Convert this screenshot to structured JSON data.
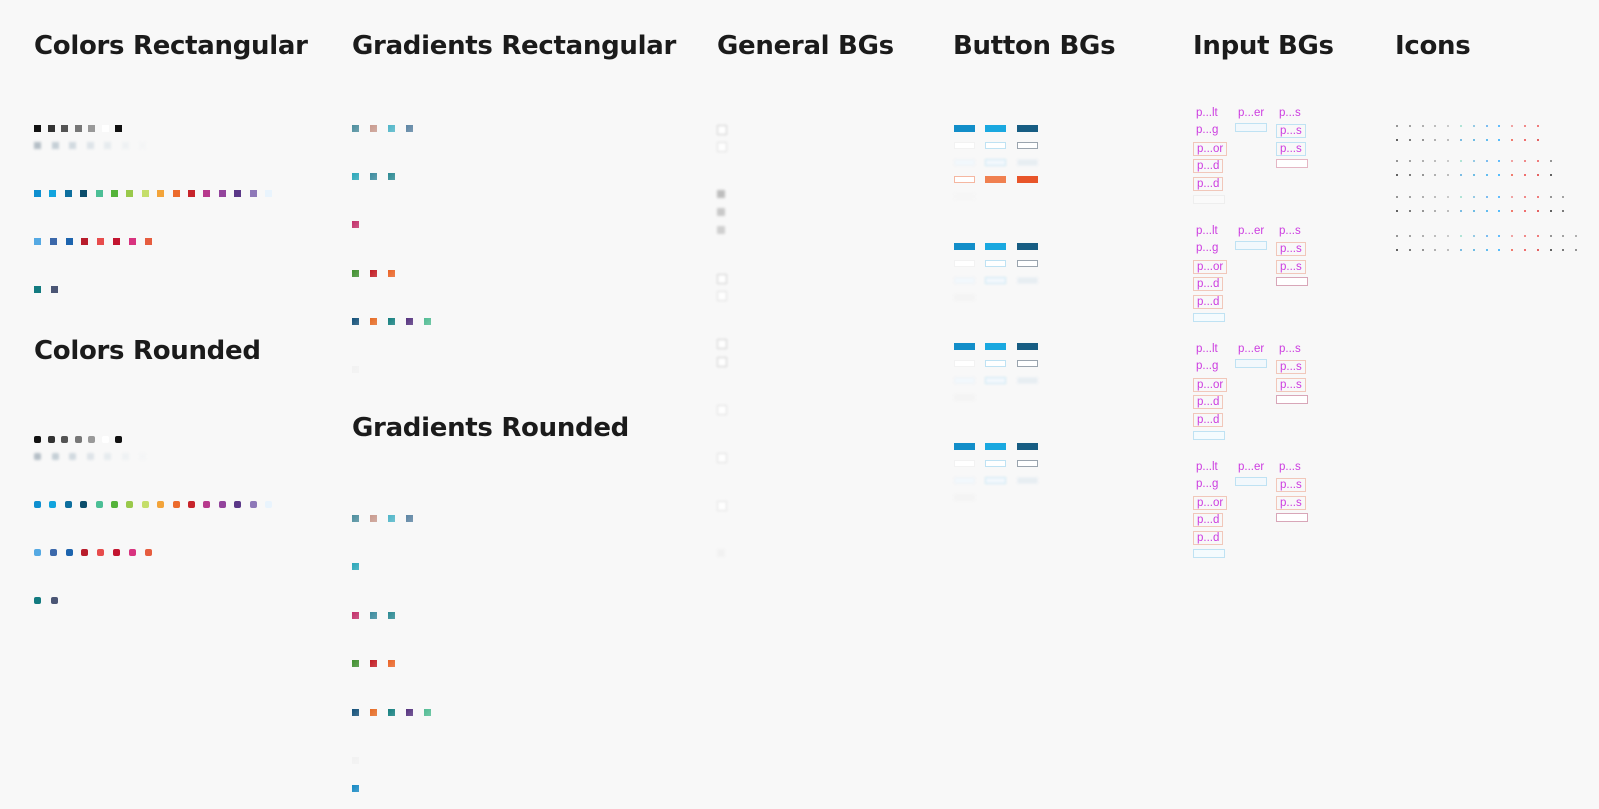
{
  "headings": {
    "colors_rect": "Colors Rectangular",
    "colors_round": "Colors Rounded",
    "grad_rect": "Gradients Rectangular",
    "grad_round": "Gradients Rounded",
    "general_bgs": "General BGs",
    "button_bgs": "Button BGs",
    "input_bgs": "Input BGs",
    "icons": "Icons"
  },
  "palette": {
    "grays": [
      "#121212",
      "#333333",
      "#555555",
      "#777777",
      "#999999",
      "#ffffff",
      "#111111"
    ],
    "light_grays": [
      "#b4bec6",
      "#c5cfd6",
      "#d1d9df",
      "#dde3e8",
      "#e6ebee",
      "#eef1f3",
      "#f4f5f6"
    ],
    "brights": [
      "#0f8fcf",
      "#12a4de",
      "#0e6f9e",
      "#0b4d6b",
      "#4cbf96",
      "#54b33a",
      "#9ac94b",
      "#c4de6a",
      "#f3a43a",
      "#ec6b2d",
      "#c7242b",
      "#b73a8d",
      "#93449c",
      "#5b3888",
      "#8e78b8",
      "#e9f4fd"
    ],
    "reds_blues": [
      "#55a9e3",
      "#3c68aa",
      "#1d64ae",
      "#b81c2b",
      "#e74c4c",
      "#c31530",
      "#d8337f",
      "#e65d3f"
    ],
    "teals": [
      "#137b80",
      "#4b5675"
    ]
  },
  "gradients": {
    "row1": [
      "#4c8d9d",
      "#c89a8e",
      "#4fb5c8",
      "#5c84a3"
    ],
    "row2": [
      "#2aa7b9",
      "#3a8a9d",
      "#2b8a93"
    ],
    "row3": [
      "#c3306a"
    ],
    "row4": [
      "#3f8f2e",
      "#c21b22",
      "#ea6426"
    ],
    "row5": [
      "#124f78",
      "#e66b24",
      "#137f7f",
      "#55327f",
      "#52bc94"
    ],
    "row6": [
      "#f2f2f2"
    ],
    "round_row1": [
      "#4c8d9d",
      "#c89a8e",
      "#4fb5c8",
      "#5c84a3"
    ],
    "round_row2": [
      "#2aa7b9"
    ],
    "round_row3": [
      "#c3306a",
      "#3a8a9d",
      "#2b8a93"
    ],
    "round_row4": [
      "#3f8f2e",
      "#c21b22",
      "#ea6426"
    ],
    "round_row5": [
      "#124f78",
      "#e66b24",
      "#137f7f",
      "#55327f",
      "#52bc94"
    ],
    "round_row6": [
      "#f2f2f2"
    ],
    "round_row7": [
      "#1689c4"
    ]
  },
  "button_colors": {
    "primary": [
      "#128ec9",
      "#1aa8e0",
      "#175d83"
    ],
    "accent": [
      "#f5b7a1",
      "#f08050",
      "#e8552a"
    ]
  },
  "input_labels": {
    "col1": [
      "p...lt",
      "p...g",
      "p...or",
      "p...d",
      "p...d"
    ],
    "col2": [
      "p...er"
    ],
    "col3": [
      "p...s",
      "p...s",
      "p...s"
    ]
  },
  "icon_colors": [
    "#4c4c4c",
    "#7a7a7a",
    "#5aa0d8",
    "#1da1e0",
    "#e04b3a",
    "#e88a6e",
    "#111111",
    "#9aa8b4"
  ]
}
